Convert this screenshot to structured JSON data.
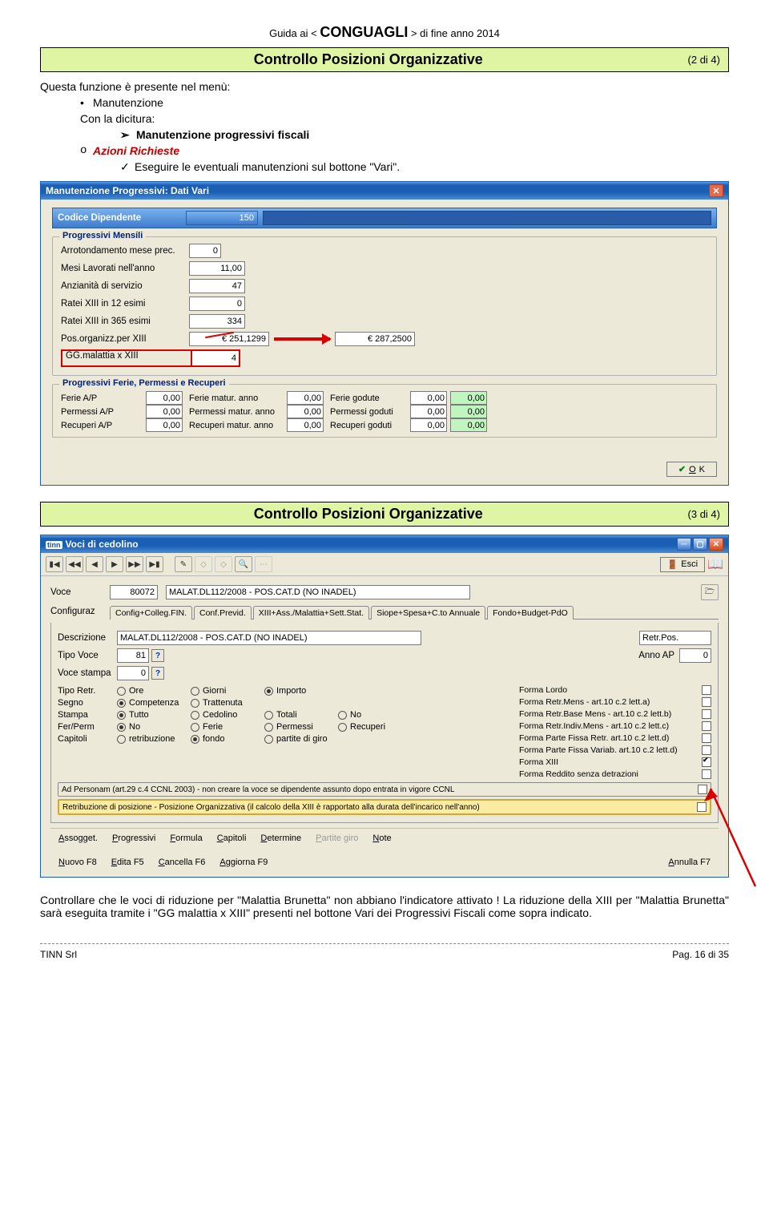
{
  "header": {
    "prefix": "Guida  ai   <",
    "main": "CONGUAGLI",
    "suffix": ">   di fine anno 2014"
  },
  "box1": {
    "title": "Controllo Posizioni Organizzative",
    "pager": "(2 di 4)"
  },
  "intro": {
    "line1": "Questa funzione è presente nel menù:",
    "bullet": "Manutenzione",
    "line2": "Con la dicitura:",
    "arrow": "Manutenzione progressivi fiscali",
    "subo": "Azioni Richieste",
    "check": "Eseguire le eventuali manutenzioni sul bottone \"Vari\"."
  },
  "win1": {
    "title": "Manutenzione Progressivi: Dati Vari",
    "cod_lbl": "Codice Dipendente",
    "cod_val": "150",
    "fs1": {
      "legend": "Progressivi Mensili",
      "r1_lbl": "Arrotondamento mese prec.",
      "r1_val": "0",
      "r2_lbl": "Mesi Lavorati nell'anno",
      "r2_val": "11,00",
      "r3_lbl": "Anzianità di servizio",
      "r3_val": "47",
      "r4_lbl": "Ratei XIII in 12 esimi",
      "r4_val": "0",
      "r5_lbl": "Ratei XIII in 365 esimi",
      "r5_val": "334",
      "r6_lbl": "Pos.organizz.per XIII",
      "r6_val": "€ 251,1299",
      "r6_new": "€ 287,2500",
      "r7_lbl": "GG.malattia x XIII",
      "r7_val": "4"
    },
    "fs2": {
      "legend": "Progressivi Ferie, Permessi e Recuperi",
      "r1": [
        "Ferie A/P",
        "0,00",
        "Ferie matur. anno",
        "0,00",
        "Ferie godute",
        "0,00",
        "0,00"
      ],
      "r2": [
        "Permessi A/P",
        "0,00",
        "Permessi matur. anno",
        "0,00",
        "Permessi goduti",
        "0,00",
        "0,00"
      ],
      "r3": [
        "Recuperi A/P",
        "0,00",
        "Recuperi matur. anno",
        "0,00",
        "Recuperi goduti",
        "0,00",
        "0,00"
      ]
    },
    "ok": "OK"
  },
  "box2": {
    "title": "Controllo Posizioni Organizzative",
    "pager": "(3 di 4)"
  },
  "win2": {
    "title": "Voci di cedolino",
    "esci": "Esci",
    "voce_lbl": "Voce",
    "voce_code": "80072",
    "voce_desc": "MALAT.DL112/2008 - POS.CAT.D (NO INADEL)",
    "conf_lbl": "Configuraz",
    "tabs": [
      "Config+Colleg.FIN.",
      "Conf.Previd.",
      "XIII+Ass./Malattia+Sett.Stat.",
      "Siope+Spesa+C.to Annuale",
      "Fondo+Budget-PdO"
    ],
    "desc_lbl": "Descrizione",
    "desc_val": "MALAT.DL112/2008 - POS.CAT.D (NO INADEL)",
    "desc_r": "Retr.Pos.",
    "tipo_voce_lbl": "Tipo Voce",
    "tipo_voce_val": "81",
    "anno_lbl": "Anno AP",
    "anno_val": "0",
    "voce_stampa_lbl": "Voce stampa",
    "voce_stampa_val": "0",
    "radios": {
      "tipo": {
        "l": "Tipo Retr.",
        "o": [
          "Ore",
          "Giorni",
          "Importo"
        ],
        "sel": 2
      },
      "segno": {
        "l": "Segno",
        "o": [
          "Competenza",
          "Trattenuta"
        ],
        "sel": 0
      },
      "stampa": {
        "l": "Stampa",
        "o": [
          "Tutto",
          "Cedolino",
          "Totali",
          "No"
        ],
        "sel": 0
      },
      "fer": {
        "l": "Fer/Perm",
        "o": [
          "No",
          "Ferie",
          "Permessi",
          "Recuperi"
        ],
        "sel": 0
      },
      "cap": {
        "l": "Capitoli",
        "o": [
          "retribuzione",
          "fondo",
          "partite di giro"
        ],
        "sel": 1
      }
    },
    "chklist": [
      "Forma Lordo",
      "Forma Retr.Mens - art.10 c.2 lett.a)",
      "Forma Retr.Base Mens - art.10 c.2 lett.b)",
      "Forma Retr.Indiv.Mens - art.10 c.2 lett.c)",
      "Forma Parte Fissa Retr. art.10 c.2 lett.d)",
      "Forma Parte Fissa Variab. art.10 c.2 lett.d)",
      "Forma XIII",
      "Forma Reddito senza detrazioni"
    ],
    "chk_checked_index": 6,
    "adp1": "Ad Personam (art.29 c.4 CCNL 2003) - non creare la voce se dipendente assunto dopo entrata in vigore CCNL",
    "adp2": "Retribuzione di posizione - Posizione Organizzativa  (il calcolo della XIII è rapportato alla durata dell'incarico nell'anno)",
    "brow": [
      "Assogget.",
      "Progressivi",
      "Formula",
      "Capitoli",
      "Determine",
      "Partite giro",
      "Note"
    ],
    "frow": [
      "Nuovo F8",
      "Edita F5",
      "Cancella F6",
      "Aggiorna F9",
      "Annulla F7"
    ]
  },
  "footer_text": "Controllare che le voci di riduzione per \"Malattia Brunetta\" non abbiano l'indicatore attivato ! La riduzione della XIII per \"Malattia Brunetta\" sarà eseguita tramite i \"GG malattia x XIII\" presenti nel bottone Vari dei Progressivi Fiscali come sopra indicato.",
  "pfooter": {
    "left": "TINN  Srl",
    "right": "Pag.  16  di  35"
  }
}
